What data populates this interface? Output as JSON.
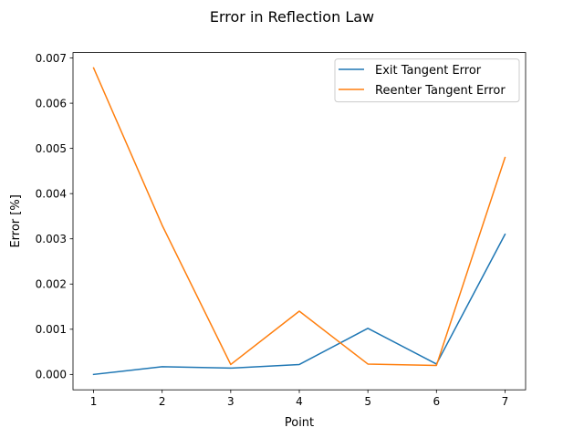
{
  "chart_data": {
    "type": "line",
    "title": "Error in Reflection Law",
    "xlabel": "Point",
    "ylabel": "Error [%]",
    "x": [
      1,
      2,
      3,
      4,
      5,
      6,
      7
    ],
    "xticks": [
      "1",
      "2",
      "3",
      "4",
      "5",
      "6",
      "7"
    ],
    "yticks": [
      "0.000",
      "0.001",
      "0.002",
      "0.003",
      "0.004",
      "0.005",
      "0.006",
      "0.007"
    ],
    "xlim": [
      0.7,
      7.3
    ],
    "ylim": [
      -0.00034,
      0.00712
    ],
    "grid": false,
    "legend_position": "top-right",
    "series": [
      {
        "name": "Exit Tangent Error",
        "color": "#1f77b4",
        "values": [
          0.0,
          0.00017,
          0.00014,
          0.00022,
          0.00102,
          0.00023,
          0.0031
        ]
      },
      {
        "name": "Reenter Tangent Error",
        "color": "#ff7f0e",
        "values": [
          0.00678,
          0.0033,
          0.00022,
          0.0014,
          0.00023,
          0.0002,
          0.0048
        ]
      }
    ]
  }
}
